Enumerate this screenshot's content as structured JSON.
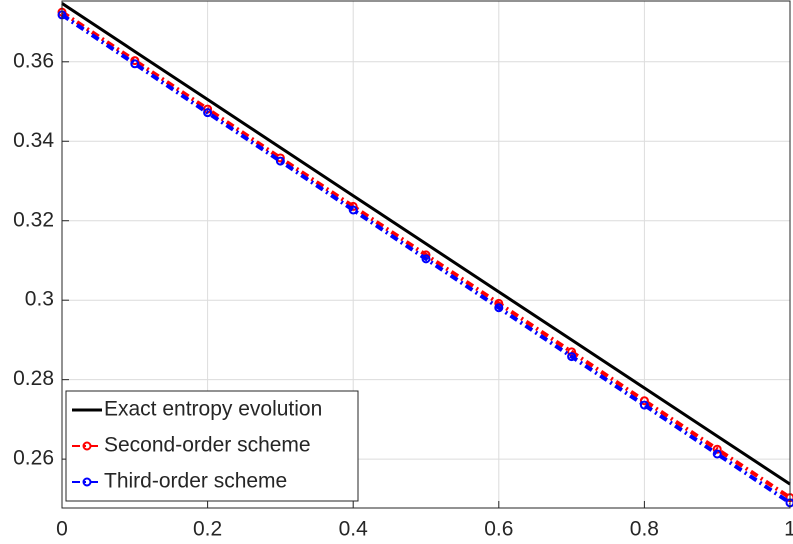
{
  "chart_data": {
    "type": "line",
    "x": [
      0,
      0.1,
      0.2,
      0.3,
      0.4,
      0.5,
      0.6,
      0.7,
      0.8,
      0.9,
      1
    ],
    "series": [
      {
        "name": "Exact entropy evolution",
        "color": "#000000",
        "dash": "solid",
        "marker": false,
        "values": [
          0.3747,
          0.3626,
          0.3505,
          0.3384,
          0.3263,
          0.3142,
          0.3021,
          0.29,
          0.2779,
          0.2658,
          0.2537
        ]
      },
      {
        "name": "Second-order scheme",
        "color": "#ff0000",
        "dash": "dashdot",
        "marker": true,
        "values": [
          0.3725,
          0.3603,
          0.3481,
          0.3358,
          0.3236,
          0.3114,
          0.2992,
          0.287,
          0.2747,
          0.2625,
          0.2503
        ]
      },
      {
        "name": "Third-order scheme",
        "color": "#0000ff",
        "dash": "dashdot",
        "marker": true,
        "values": [
          0.3718,
          0.3595,
          0.3472,
          0.335,
          0.3227,
          0.3104,
          0.2981,
          0.2858,
          0.2736,
          0.2613,
          0.249
        ]
      }
    ],
    "xlim": [
      0,
      1
    ],
    "xticks": [
      0,
      0.2,
      0.4,
      0.6,
      0.8,
      1
    ],
    "ylim": [
      0.2477,
      0.3753
    ],
    "yticks": [
      0.26,
      0.28,
      0.3,
      0.32,
      0.34,
      0.36
    ],
    "grid": true,
    "legend": "lower-left"
  }
}
